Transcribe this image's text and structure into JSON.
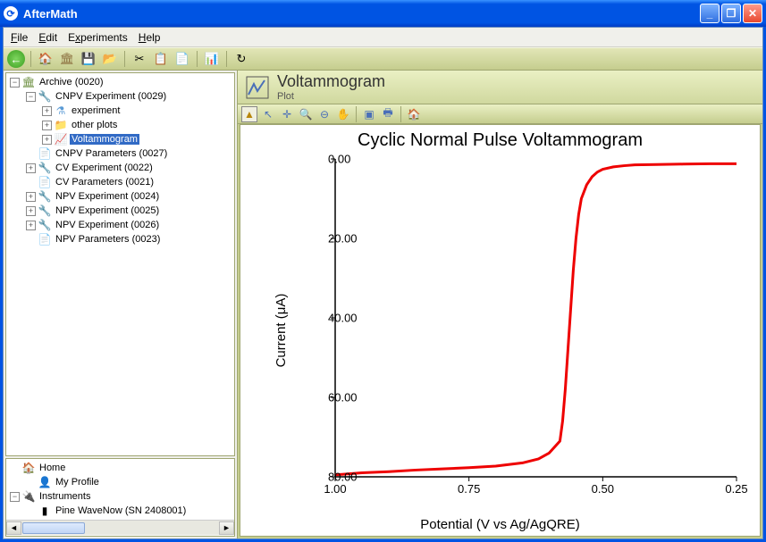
{
  "window": {
    "app_title": "AfterMath"
  },
  "menu": {
    "file": "File",
    "edit": "Edit",
    "experiments": "Experiments",
    "help": "Help"
  },
  "tree": {
    "root": {
      "label": "Archive (0020)"
    },
    "items": [
      {
        "label": "CNPV Experiment (0029)",
        "indent": 1,
        "icon": "exp",
        "expander": "−"
      },
      {
        "label": "experiment",
        "indent": 2,
        "icon": "flask",
        "expander": "+"
      },
      {
        "label": "other plots",
        "indent": 2,
        "icon": "folder",
        "expander": "+"
      },
      {
        "label": "Voltammogram",
        "indent": 2,
        "icon": "plot",
        "expander": "+",
        "selected": true
      },
      {
        "label": "CNPV Parameters (0027)",
        "indent": 1,
        "icon": "params",
        "expander": ""
      },
      {
        "label": "CV Experiment (0022)",
        "indent": 1,
        "icon": "exp",
        "expander": "+"
      },
      {
        "label": "CV Parameters (0021)",
        "indent": 1,
        "icon": "params",
        "expander": ""
      },
      {
        "label": "NPV Experiment (0024)",
        "indent": 1,
        "icon": "exp",
        "expander": "+"
      },
      {
        "label": "NPV Experiment (0025)",
        "indent": 1,
        "icon": "exp",
        "expander": "+"
      },
      {
        "label": "NPV Experiment (0026)",
        "indent": 1,
        "icon": "exp",
        "expander": "+"
      },
      {
        "label": "NPV Parameters (0023)",
        "indent": 1,
        "icon": "params",
        "expander": ""
      }
    ]
  },
  "lower_tree": {
    "items": [
      {
        "label": "Home",
        "indent": 0,
        "icon": "home",
        "expander": ""
      },
      {
        "label": "My Profile",
        "indent": 1,
        "icon": "profile",
        "expander": ""
      },
      {
        "label": "Instruments",
        "indent": 0,
        "icon": "instruments",
        "expander": "−"
      },
      {
        "label": "Pine WaveNow (SN 2408001)",
        "indent": 1,
        "icon": "device",
        "expander": ""
      }
    ]
  },
  "plot_header": {
    "title": "Voltammogram",
    "subtitle": "Plot"
  },
  "chart": {
    "type": "line",
    "title": "Cyclic Normal Pulse Voltammogram",
    "xlabel": "Potential (V vs Ag/AgQRE)",
    "ylabel": "Current (μA)",
    "title_fontsize": 20,
    "label_fontsize": 15,
    "tick_fontsize": 13,
    "line_color": "#ee0000",
    "line_width": 3,
    "background_color": "#ffffff",
    "axis_color": "#000000",
    "x_ticks": [
      1.0,
      0.75,
      0.5,
      0.25
    ],
    "x_tick_labels": [
      "1.00",
      "0.75",
      "0.50",
      "0.25"
    ],
    "y_ticks": [
      0.0,
      20.0,
      40.0,
      60.0,
      80.0
    ],
    "y_tick_labels": [
      "0.00",
      "20.00",
      "40.00",
      "60.00",
      "80.00"
    ],
    "xlim": [
      1.0,
      0.25
    ],
    "ylim": [
      0.0,
      80.0
    ],
    "y_inverted": true,
    "x_values": [
      1.0,
      0.95,
      0.9,
      0.85,
      0.8,
      0.75,
      0.7,
      0.65,
      0.62,
      0.6,
      0.58,
      0.575,
      0.57,
      0.565,
      0.56,
      0.555,
      0.55,
      0.545,
      0.54,
      0.53,
      0.52,
      0.51,
      0.5,
      0.48,
      0.46,
      0.44,
      0.4,
      0.35,
      0.3,
      0.25
    ],
    "y_values": [
      79.5,
      79.0,
      78.7,
      78.3,
      78.0,
      77.7,
      77.3,
      76.5,
      75.5,
      74.0,
      71.0,
      66.0,
      58.0,
      48.0,
      38.0,
      28.0,
      20.0,
      14.0,
      10.0,
      6.5,
      4.5,
      3.3,
      2.6,
      2.0,
      1.7,
      1.5,
      1.4,
      1.3,
      1.2,
      1.2
    ]
  }
}
